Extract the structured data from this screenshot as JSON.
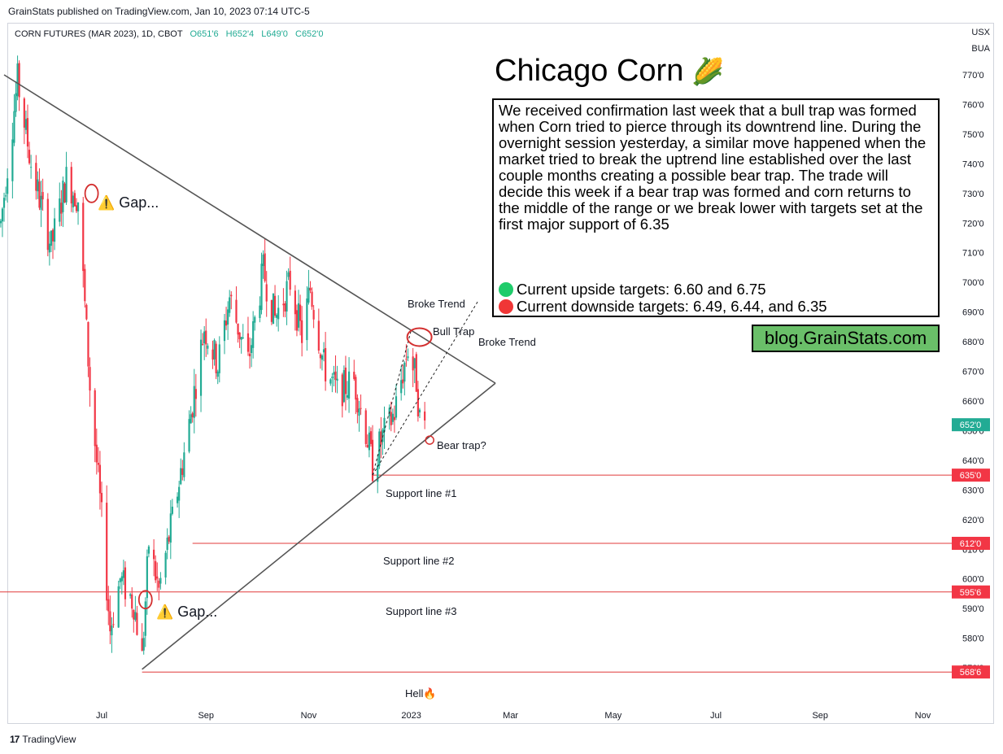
{
  "header": {
    "published": "GrainStats published on TradingView.com, Jan 10, 2023 07:14 UTC-5",
    "symbol": "CORN FUTURES (MAR 2023), 1D, CBOT",
    "ohlc": {
      "o": "O651'6",
      "h": "H652'4",
      "l": "L649'0",
      "c": "C652'0"
    },
    "currency": "USX",
    "unit": "BUA"
  },
  "footer": {
    "brand": "TradingView"
  },
  "colors": {
    "up": "#22ab94",
    "down": "#f23645",
    "line": "#555555",
    "support": "#e03a3a",
    "blog_bg": "#6abf69"
  },
  "annotation": {
    "title": "Chicago Corn",
    "icon": "corn-icon",
    "body": "We received confirmation last week that a bull trap was formed when Corn tried to pierce through its downtrend line. During the overnight session yesterday, a similar move happened when the market tried to break the uptrend line established over the last couple months creating a possible bear trap. The trade will decide this week if a bear trap was formed and corn returns to the middle of the range or we break lower with targets set at the first major support of 6.35",
    "upside": "Current upside targets:  6.60 and 6.75",
    "downside": "Current downside targets: 6.49, 6.44, and 6.35",
    "blog": "blog.GrainStats.com"
  },
  "chart_data": {
    "type": "candlestick",
    "y_unit": "cents/bushel",
    "ylim": [
      565,
      782
    ],
    "y_ticks": [
      "770'0",
      "760'0",
      "750'0",
      "740'0",
      "730'0",
      "720'0",
      "710'0",
      "700'0",
      "690'0",
      "680'0",
      "670'0",
      "660'0",
      "650'0",
      "640'0",
      "630'0",
      "620'0",
      "610'0",
      "600'0",
      "590'0",
      "580'0",
      "570'0"
    ],
    "y_tick_values": [
      770,
      760,
      750,
      740,
      730,
      720,
      710,
      700,
      690,
      680,
      670,
      660,
      650,
      640,
      630,
      620,
      610,
      600,
      590,
      580,
      570
    ],
    "x_ticks": [
      "Jul",
      "Sep",
      "Nov",
      "2023",
      "Mar",
      "May",
      "Jul",
      "Sep",
      "Nov"
    ],
    "x_tick_dates": [
      "2022-07-01",
      "2022-09-01",
      "2022-11-01",
      "2023-01-01",
      "2023-03-01",
      "2023-05-01",
      "2023-07-01",
      "2023-09-01",
      "2023-11-01"
    ],
    "xlim": [
      "2022-05-01",
      "2023-11-30"
    ],
    "last_price": {
      "value": 652.0,
      "label": "652'0"
    },
    "price_path": [
      {
        "date": "2022-05-02",
        "value": 720
      },
      {
        "date": "2022-05-12",
        "value": 768
      },
      {
        "date": "2022-05-20",
        "value": 740
      },
      {
        "date": "2022-06-01",
        "value": 712
      },
      {
        "date": "2022-06-10",
        "value": 735
      },
      {
        "date": "2022-06-17",
        "value": 728
      },
      {
        "date": "2022-06-24",
        "value": 665
      },
      {
        "date": "2022-07-01",
        "value": 620
      },
      {
        "date": "2022-07-06",
        "value": 583
      },
      {
        "date": "2022-07-12",
        "value": 600
      },
      {
        "date": "2022-07-20",
        "value": 592
      },
      {
        "date": "2022-07-25",
        "value": 573
      },
      {
        "date": "2022-07-29",
        "value": 612
      },
      {
        "date": "2022-08-04",
        "value": 596
      },
      {
        "date": "2022-08-12",
        "value": 620
      },
      {
        "date": "2022-08-22",
        "value": 652
      },
      {
        "date": "2022-08-31",
        "value": 685
      },
      {
        "date": "2022-09-08",
        "value": 672
      },
      {
        "date": "2022-09-15",
        "value": 695
      },
      {
        "date": "2022-09-26",
        "value": 673
      },
      {
        "date": "2022-10-05",
        "value": 704
      },
      {
        "date": "2022-10-12",
        "value": 688
      },
      {
        "date": "2022-10-21",
        "value": 700
      },
      {
        "date": "2022-10-28",
        "value": 682
      },
      {
        "date": "2022-11-02",
        "value": 698
      },
      {
        "date": "2022-11-10",
        "value": 672
      },
      {
        "date": "2022-11-18",
        "value": 663
      },
      {
        "date": "2022-11-28",
        "value": 667
      },
      {
        "date": "2022-12-05",
        "value": 650
      },
      {
        "date": "2022-12-09",
        "value": 638
      },
      {
        "date": "2022-12-15",
        "value": 648
      },
      {
        "date": "2022-12-22",
        "value": 656
      },
      {
        "date": "2022-12-30",
        "value": 678
      },
      {
        "date": "2023-01-04",
        "value": 667
      },
      {
        "date": "2023-01-06",
        "value": 654
      },
      {
        "date": "2023-01-09",
        "value": 652
      }
    ],
    "trendlines": [
      {
        "from": {
          "date": "2022-05-04",
          "value": 770
        },
        "to": {
          "date": "2023-02-20",
          "value": 666
        }
      },
      {
        "from": {
          "date": "2022-07-25",
          "value": 569.5
        },
        "to": {
          "date": "2023-02-20",
          "value": 666
        }
      },
      {
        "from": {
          "date": "2022-12-09",
          "value": 635
        },
        "to": {
          "date": "2023-01-01",
          "value": 684
        },
        "dashed": true
      },
      {
        "from": {
          "date": "2022-12-09",
          "value": 635
        },
        "to": {
          "date": "2023-02-10",
          "value": 694
        },
        "dashed": true
      }
    ],
    "support_lines": [
      {
        "value": 635.0,
        "label": "635'0",
        "name": "Support line #1",
        "start": "2022-12-09"
      },
      {
        "value": 612.0,
        "label": "612'0",
        "name": "Support line #2",
        "start": "2022-08-24"
      },
      {
        "value": 595.6,
        "label": "595'6",
        "name": "Support line #3",
        "start": "2022-05-01"
      },
      {
        "value": 568.6,
        "label": "568'6",
        "name": "Hell",
        "start": "2022-07-25"
      }
    ],
    "annotations": [
      {
        "text": "Broke Trend",
        "date": "2023-01-01",
        "value": 689
      },
      {
        "text": "Bull Trap",
        "date": "2023-01-04",
        "value": 685
      },
      {
        "text": "Broke Trend",
        "date": "2023-02-05",
        "value": 679
      },
      {
        "text": "Bear trap?",
        "date": "2023-01-10",
        "value": 648
      },
      {
        "text": "Gap...",
        "date": "2022-06-25",
        "value": 728
      },
      {
        "text": "Gap...",
        "date": "2022-08-05",
        "value": 592
      }
    ],
    "gap_markers": [
      {
        "date": "2022-06-25",
        "value": 730
      },
      {
        "date": "2022-07-27",
        "value": 593
      }
    ],
    "trap_markers": [
      {
        "date": "2023-01-01",
        "value": 681
      },
      {
        "date": "2023-01-10",
        "value": 649
      }
    ]
  }
}
